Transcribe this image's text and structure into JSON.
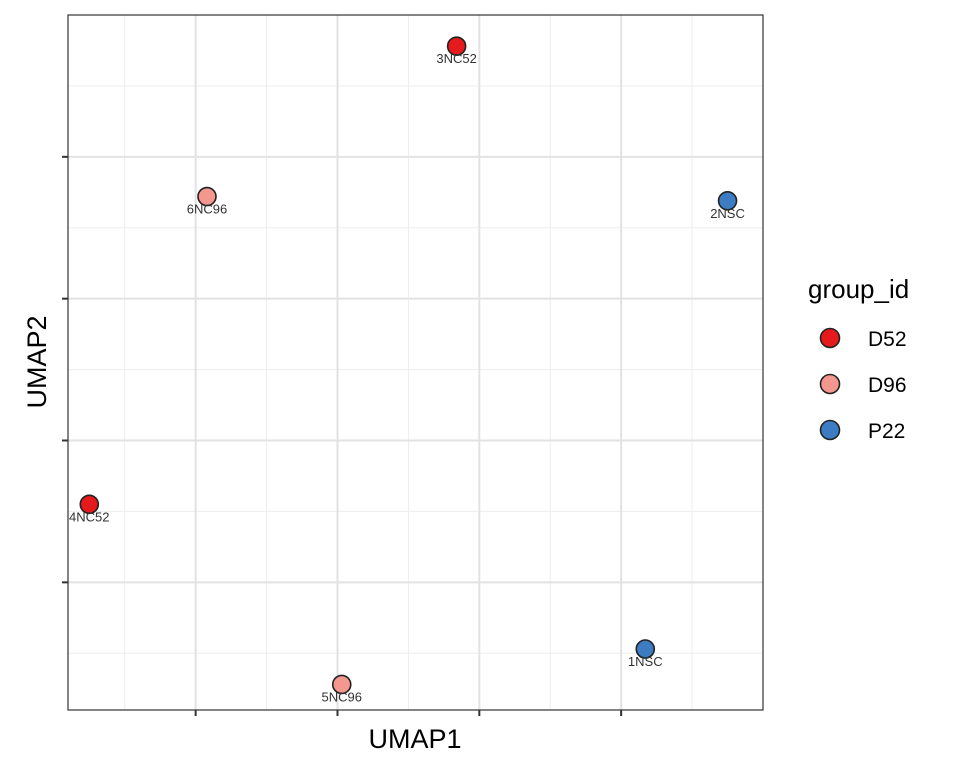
{
  "chart_data": {
    "type": "scatter",
    "title": "",
    "xlabel": "UMAP1",
    "ylabel": "UMAP2",
    "xlim": [
      -1.9,
      3.0
    ],
    "ylim": [
      -2.9,
      2.0
    ],
    "xticks": [
      -1,
      0,
      1,
      2
    ],
    "yticks": [
      -2,
      -1,
      0,
      1
    ],
    "grid": true,
    "legend": {
      "title": "group_id",
      "position": "right",
      "entries": [
        {
          "label": "D52",
          "color": "#E41A1C"
        },
        {
          "label": "D96",
          "color": "#F4978E"
        },
        {
          "label": "P22",
          "color": "#3C7CC2"
        }
      ]
    },
    "points": [
      {
        "label": "3NC52",
        "group": "D52",
        "x": 0.84,
        "y": 1.78
      },
      {
        "label": "6NC96",
        "group": "D96",
        "x": -0.92,
        "y": 0.72
      },
      {
        "label": "2NSC",
        "group": "P22",
        "x": 2.75,
        "y": 0.69
      },
      {
        "label": "4NC52",
        "group": "D52",
        "x": -1.75,
        "y": -1.45
      },
      {
        "label": "5NC96",
        "group": "D96",
        "x": 0.03,
        "y": -2.72
      },
      {
        "label": "1NSC",
        "group": "P22",
        "x": 2.17,
        "y": -2.47
      }
    ]
  }
}
